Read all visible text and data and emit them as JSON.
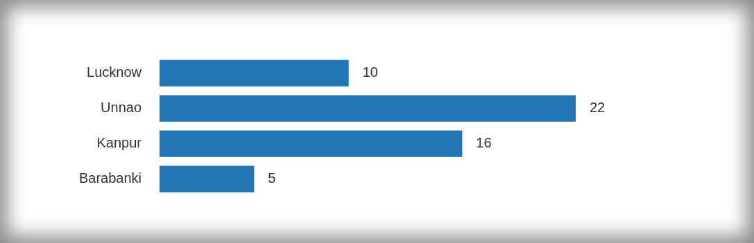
{
  "chart_data": {
    "type": "bar",
    "orientation": "horizontal",
    "categories": [
      "Lucknow",
      "Unnao",
      "Kanpur",
      "Barabanki"
    ],
    "values": [
      10,
      22,
      16,
      5
    ],
    "color": "#2277b4",
    "data_labels": true
  }
}
